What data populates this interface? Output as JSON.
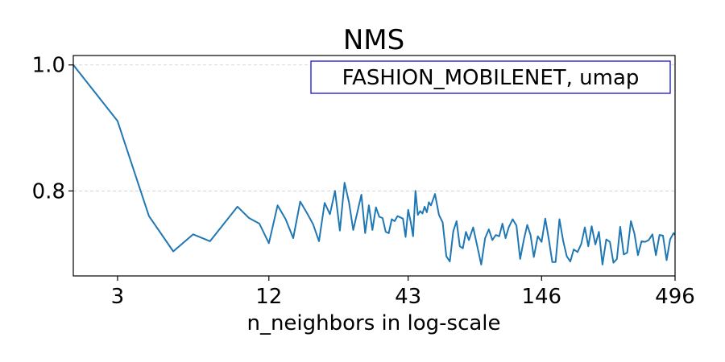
{
  "chart_data": {
    "type": "line",
    "title": "NMS",
    "xlabel": "n_neighbors in log-scale",
    "ylabel": "",
    "x_scale": "log",
    "xlim": [
      2,
      496
    ],
    "ylim": [
      0.665,
      1.015
    ],
    "x_ticks": [
      3,
      12,
      43,
      146,
      496
    ],
    "x_tick_labels": [
      "3",
      "12",
      "43",
      "146",
      "496"
    ],
    "y_ticks": [
      1.0,
      0.8
    ],
    "y_tick_labels": [
      "1.0",
      "0.8"
    ],
    "grid": "horizontal dashed",
    "annotation": "FASHION_MOBILENET, umap",
    "annotation_placement": "top-right",
    "colors": {
      "line": "#1f77b4",
      "annotation_border": "#0000cc",
      "grid": "#cccccc"
    },
    "series": [
      {
        "x": [
          2,
          3,
          4,
          5,
          6,
          7,
          9,
          10,
          11,
          12,
          13,
          14,
          15,
          16,
          17,
          18,
          19,
          20,
          21,
          22,
          23,
          24,
          25,
          26,
          27,
          28,
          29,
          30,
          31,
          32,
          33,
          34,
          35,
          36,
          37,
          38,
          39,
          40,
          41,
          42,
          43,
          44,
          45,
          46,
          47,
          48,
          49,
          50,
          51,
          52,
          53,
          55,
          57,
          59,
          61,
          63,
          65,
          67,
          69,
          71,
          73,
          75,
          78,
          81,
          84,
          87,
          90,
          93,
          96,
          99,
          102,
          105,
          108,
          112,
          116,
          120,
          124,
          128,
          132,
          136,
          141,
          146,
          151,
          156,
          161,
          166,
          172,
          178,
          184,
          190,
          196,
          203,
          210,
          217,
          224,
          231,
          239,
          247,
          255,
          264,
          273,
          282,
          291,
          300,
          310,
          320,
          331,
          342,
          353,
          365,
          377,
          390,
          403,
          416,
          430,
          444,
          459,
          474,
          489,
          496
        ],
        "y": [
          1.0,
          0.911,
          0.76,
          0.704,
          0.731,
          0.72,
          0.775,
          0.757,
          0.748,
          0.717,
          0.777,
          0.755,
          0.725,
          0.783,
          0.765,
          0.747,
          0.72,
          0.781,
          0.763,
          0.8,
          0.737,
          0.813,
          0.782,
          0.738,
          0.766,
          0.794,
          0.733,
          0.777,
          0.738,
          0.774,
          0.759,
          0.757,
          0.735,
          0.733,
          0.755,
          0.752,
          0.76,
          0.758,
          0.756,
          0.727,
          0.77,
          0.751,
          0.728,
          0.8,
          0.762,
          0.768,
          0.764,
          0.775,
          0.766,
          0.782,
          0.777,
          0.795,
          0.762,
          0.75,
          0.696,
          0.688,
          0.736,
          0.752,
          0.712,
          0.709,
          0.735,
          0.722,
          0.742,
          0.712,
          0.683,
          0.725,
          0.739,
          0.722,
          0.73,
          0.728,
          0.748,
          0.725,
          0.742,
          0.755,
          0.745,
          0.692,
          0.722,
          0.746,
          0.73,
          0.695,
          0.728,
          0.719,
          0.756,
          0.723,
          0.687,
          0.687,
          0.755,
          0.72,
          0.696,
          0.688,
          0.707,
          0.703,
          0.716,
          0.742,
          0.712,
          0.744,
          0.715,
          0.735,
          0.683,
          0.723,
          0.719,
          0.686,
          0.692,
          0.743,
          0.699,
          0.702,
          0.752,
          0.732,
          0.698,
          0.72,
          0.719,
          0.722,
          0.731,
          0.698,
          0.73,
          0.729,
          0.69,
          0.723,
          0.733,
          0.73
        ]
      }
    ]
  }
}
